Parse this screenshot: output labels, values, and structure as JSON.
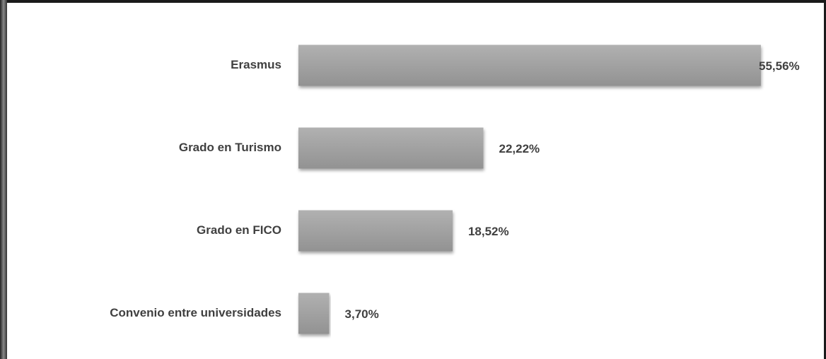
{
  "chart_data": {
    "type": "bar",
    "orientation": "horizontal",
    "categories": [
      "Erasmus",
      "Grado en Turismo",
      "Grado en FICO",
      "Convenio entre universidades"
    ],
    "values": [
      55.56,
      22.22,
      18.52,
      3.7
    ],
    "value_labels": [
      "55,56%",
      "22,22%",
      "18,52%",
      "3,70%"
    ],
    "color": "#a6a6a6"
  }
}
